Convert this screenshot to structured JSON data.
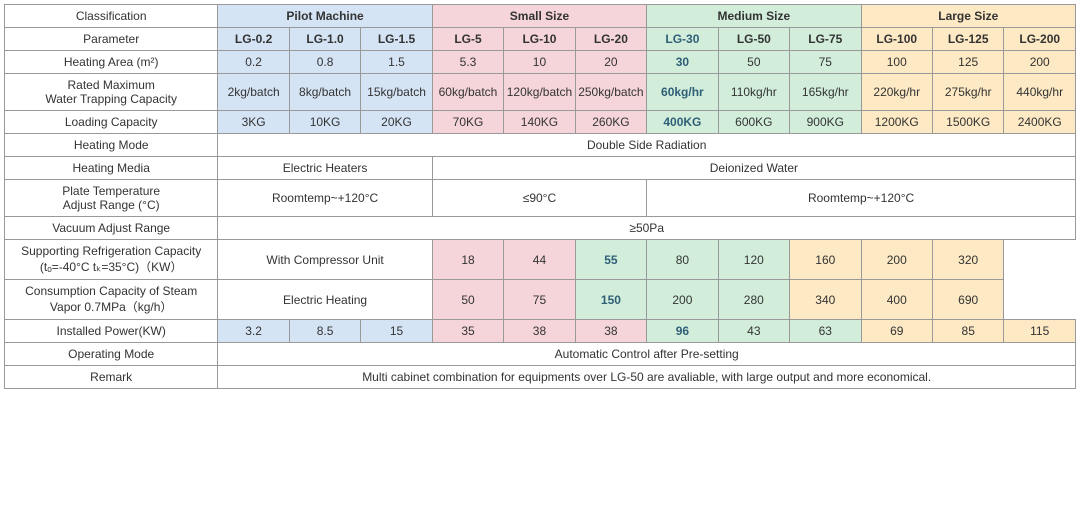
{
  "colors": {
    "pilot": "#d5e4f5",
    "small": "#f5d5d9",
    "medium": "#d2eedb",
    "large": "#fde9c4",
    "highlight_text": "#2f5f77"
  },
  "col_widths": {
    "label": 212,
    "data": 71
  },
  "groups": [
    {
      "label": "Pilot Machine",
      "span": 3,
      "color_key": "pilot"
    },
    {
      "label": "Small Size",
      "span": 3,
      "color_key": "small"
    },
    {
      "label": "Medium Size",
      "span": 3,
      "color_key": "medium"
    },
    {
      "label": "Large Size",
      "span": 3,
      "color_key": "large"
    }
  ],
  "models": [
    "LG-0.2",
    "LG-1.0",
    "LG-1.5",
    "LG-5",
    "LG-10",
    "LG-20",
    "LG-30",
    "LG-50",
    "LG-75",
    "LG-100",
    "LG-125",
    "LG-200"
  ],
  "highlight_col_index": 6,
  "row_labels": {
    "classification": "Classification",
    "parameter": "Parameter",
    "heating_area": "Heating Area (m²)",
    "rated_max": "Rated Maximum",
    "rated_max2": "Water Trapping Capacity",
    "loading": "Loading Capacity",
    "heating_mode": "Heating Mode",
    "heating_media": "Heating Media",
    "plate_temp": "Plate Temperature",
    "plate_temp2": "Adjust Range (°C)",
    "vacuum": "Vacuum Adjust Range",
    "refrig": "Supporting Refrigeration Capacity",
    "refrig2": "(tₒ=-40°C tₖ=35°C)（KW）",
    "steam": "Consumption Capacity of Steam",
    "steam2": "Vapor 0.7MPa（kg/h）",
    "power": "Installed Power(KW)",
    "op_mode": "Operating Mode",
    "remark": "Remark"
  },
  "data_rows": {
    "heating_area": [
      "0.2",
      "0.8",
      "1.5",
      "5.3",
      "10",
      "20",
      "30",
      "50",
      "75",
      "100",
      "125",
      "200"
    ],
    "rated_max": [
      "2kg/batch",
      "8kg/batch",
      "15kg/batch",
      "60kg/batch",
      "120kg/batch",
      "250kg/batch",
      "60kg/hr",
      "110kg/hr",
      "165kg/hr",
      "220kg/hr",
      "275kg/hr",
      "440kg/hr"
    ],
    "loading": [
      "3KG",
      "10KG",
      "20KG",
      "70KG",
      "140KG",
      "260KG",
      "400KG",
      "600KG",
      "900KG",
      "1200KG",
      "1500KG",
      "2400KG"
    ],
    "power": [
      "3.2",
      "8.5",
      "15",
      "35",
      "38",
      "38",
      "96",
      "43",
      "63",
      "69",
      "85",
      "115"
    ]
  },
  "merged_rows": {
    "heating_mode": [
      {
        "text": "Double Side Radiation",
        "span": 12,
        "color_key": null
      }
    ],
    "heating_media": [
      {
        "text": "Electric Heaters",
        "span": 3,
        "color_key": null
      },
      {
        "text": "Deionized Water",
        "span": 9,
        "color_key": null
      }
    ],
    "plate_temp": [
      {
        "text": "Roomtemp~+120°C",
        "span": 3,
        "color_key": null
      },
      {
        "text": "≤90°C",
        "span": 3,
        "color_key": null
      },
      {
        "text": "Roomtemp~+120°C",
        "span": 6,
        "color_key": null
      }
    ],
    "vacuum": [
      {
        "text": "≥50Pa",
        "span": 12,
        "color_key": null
      }
    ],
    "refrig": [
      {
        "text": "With Compressor Unit",
        "span": 3,
        "color_key": null
      },
      {
        "text": "18",
        "span": 1,
        "color_key": "small"
      },
      {
        "text": "44",
        "span": 1,
        "color_key": "small"
      },
      {
        "text": "55",
        "span": 1,
        "color_key": "medium",
        "highlight": true
      },
      {
        "text": "80",
        "span": 1,
        "color_key": "medium"
      },
      {
        "text": "120",
        "span": 1,
        "color_key": "medium"
      },
      {
        "text": "160",
        "span": 1,
        "color_key": "large"
      },
      {
        "text": "200",
        "span": 1,
        "color_key": "large"
      },
      {
        "text": "320",
        "span": 1,
        "color_key": "large"
      }
    ],
    "steam": [
      {
        "text": "Electric Heating",
        "span": 3,
        "color_key": null
      },
      {
        "text": "50",
        "span": 1,
        "color_key": "small"
      },
      {
        "text": "75",
        "span": 1,
        "color_key": "small"
      },
      {
        "text": "150",
        "span": 1,
        "color_key": "medium",
        "highlight": true
      },
      {
        "text": "200",
        "span": 1,
        "color_key": "medium"
      },
      {
        "text": "280",
        "span": 1,
        "color_key": "medium"
      },
      {
        "text": "340",
        "span": 1,
        "color_key": "large"
      },
      {
        "text": "400",
        "span": 1,
        "color_key": "large"
      },
      {
        "text": "690",
        "span": 1,
        "color_key": "large"
      }
    ],
    "op_mode": [
      {
        "text": "Automatic Control after Pre-setting",
        "span": 12,
        "color_key": null
      }
    ],
    "remark": [
      {
        "text": "Multi cabinet combination for equipments over LG-50 are avaliable, with large output and more economical.",
        "span": 12,
        "color_key": null
      }
    ]
  }
}
